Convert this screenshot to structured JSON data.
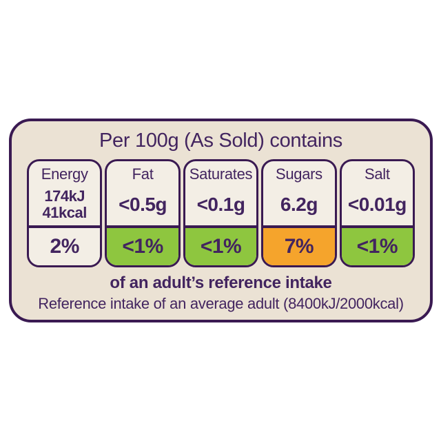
{
  "label": {
    "title": "Per 100g (As Sold) contains",
    "columns": [
      {
        "name": "Energy",
        "value_1": "174kJ",
        "value_2": "41kcal",
        "percent": "2%",
        "level": "plain"
      },
      {
        "name": "Fat",
        "value_1": "<0.5g",
        "percent": "<1%",
        "level": "green"
      },
      {
        "name": "Saturates",
        "value_1": "<0.1g",
        "percent": "<1%",
        "level": "green"
      },
      {
        "name": "Sugars",
        "value_1": "6.2g",
        "percent": "7%",
        "level": "orange"
      },
      {
        "name": "Salt",
        "value_1": "<0.01g",
        "percent": "<1%",
        "level": "green"
      }
    ],
    "footnote_bold": "of an adult’s reference intake",
    "footnote": "Reference intake of an average adult (8400kJ/2000kcal)"
  },
  "colors": {
    "purple": "#42245f",
    "border": "#3a1a52",
    "panel_bg": "#ebe2d4",
    "cell_bg": "#f3eee5",
    "green": "#8ec63f",
    "orange": "#f5a42c",
    "page_bg": "#ffffff"
  }
}
